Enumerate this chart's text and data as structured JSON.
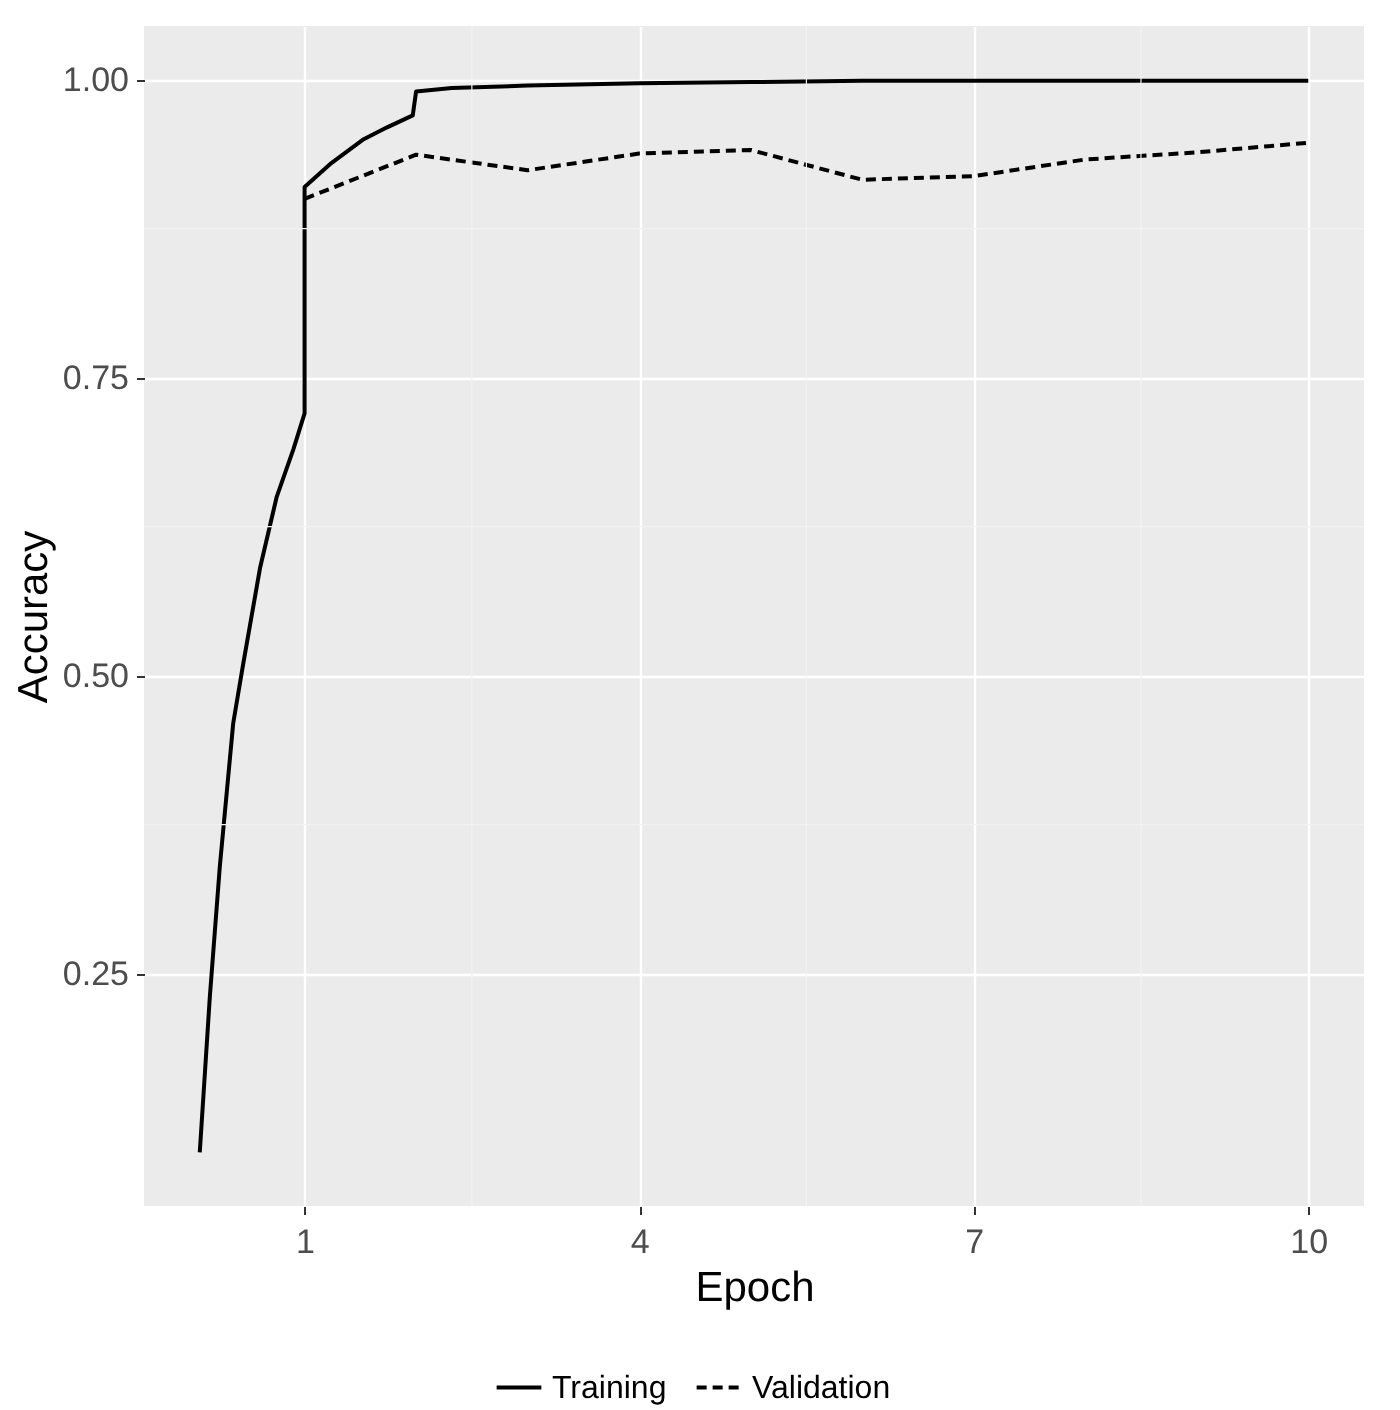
{
  "chart_data": {
    "type": "line",
    "xlabel": "Epoch",
    "ylabel": "Accuracy",
    "xlim": [
      -0.44,
      10.5
    ],
    "xticks": [
      1,
      4,
      7,
      10
    ],
    "ylim": [
      0.055,
      1.045
    ],
    "yticks": [
      {
        "value": 0.25,
        "label": "0.25"
      },
      {
        "value": 0.5,
        "label": "0.50"
      },
      {
        "value": 0.75,
        "label": "0.75"
      },
      {
        "value": 1.0,
        "label": "1.00"
      }
    ],
    "grid": true,
    "legend": "bottom",
    "series": [
      {
        "name": "Training",
        "color": "#000000",
        "line_style": "solid",
        "x": [
          0.06,
          0.15,
          0.24,
          0.36,
          0.45,
          0.6,
          0.75,
          0.9,
          1.0,
          1.0,
          1.24,
          1.53,
          1.74,
          1.97,
          2.0,
          2.32,
          3.0,
          4.0,
          5.0,
          6.0,
          7.0,
          8.0,
          9.0,
          10.0
        ],
        "values": [
          0.1,
          0.23,
          0.34,
          0.46,
          0.51,
          0.59,
          0.65,
          0.69,
          0.72,
          0.91,
          0.93,
          0.95,
          0.96,
          0.97,
          0.99,
          0.993,
          0.995,
          0.997,
          0.998,
          0.999,
          0.999,
          0.999,
          0.999,
          0.999
        ]
      },
      {
        "name": "Validation",
        "color": "#000000",
        "line_style": "dashed",
        "x": [
          1,
          2,
          3,
          4,
          5,
          6,
          7,
          8,
          9,
          10
        ],
        "values": [
          0.9,
          0.937,
          0.924,
          0.938,
          0.941,
          0.916,
          0.919,
          0.933,
          0.939,
          0.947
        ]
      }
    ]
  }
}
